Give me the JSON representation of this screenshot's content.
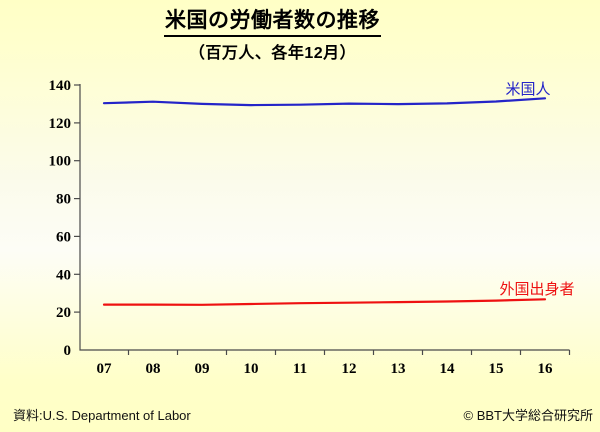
{
  "slide": {
    "title": "米国の労働者数の推移",
    "subtitle": "（百万人、各年12月）",
    "source": "資料:U.S. Department of Labor",
    "credit": "© BBT大学総合研究所"
  },
  "colors": {
    "background_yellow": "#ffffc9",
    "axis": "#4a4a4a",
    "text": "#000000",
    "american_line": "#2424c8",
    "foreign_line": "#ee1111"
  },
  "chart_data": {
    "type": "line",
    "title": "米国の労働者数の推移",
    "subtitle": "（百万人、各年12月）",
    "x": [
      "07",
      "08",
      "09",
      "10",
      "11",
      "12",
      "13",
      "14",
      "15",
      "16"
    ],
    "series": [
      {
        "name": "米国人",
        "color": "#2424c8",
        "values": [
          130.4,
          131.2,
          130.0,
          129.4,
          129.6,
          130.2,
          129.9,
          130.3,
          131.3,
          133.0
        ]
      },
      {
        "name": "外国出身者",
        "color": "#ee1111",
        "values": [
          24.0,
          24.0,
          23.9,
          24.3,
          24.7,
          25.0,
          25.3,
          25.6,
          26.1,
          26.8
        ]
      }
    ],
    "xlabel": "",
    "ylabel": "",
    "ylim": [
      0,
      140
    ],
    "yticks": [
      0,
      20,
      40,
      60,
      80,
      100,
      120,
      140
    ],
    "grid": false,
    "legend_position": "inline-labels"
  }
}
